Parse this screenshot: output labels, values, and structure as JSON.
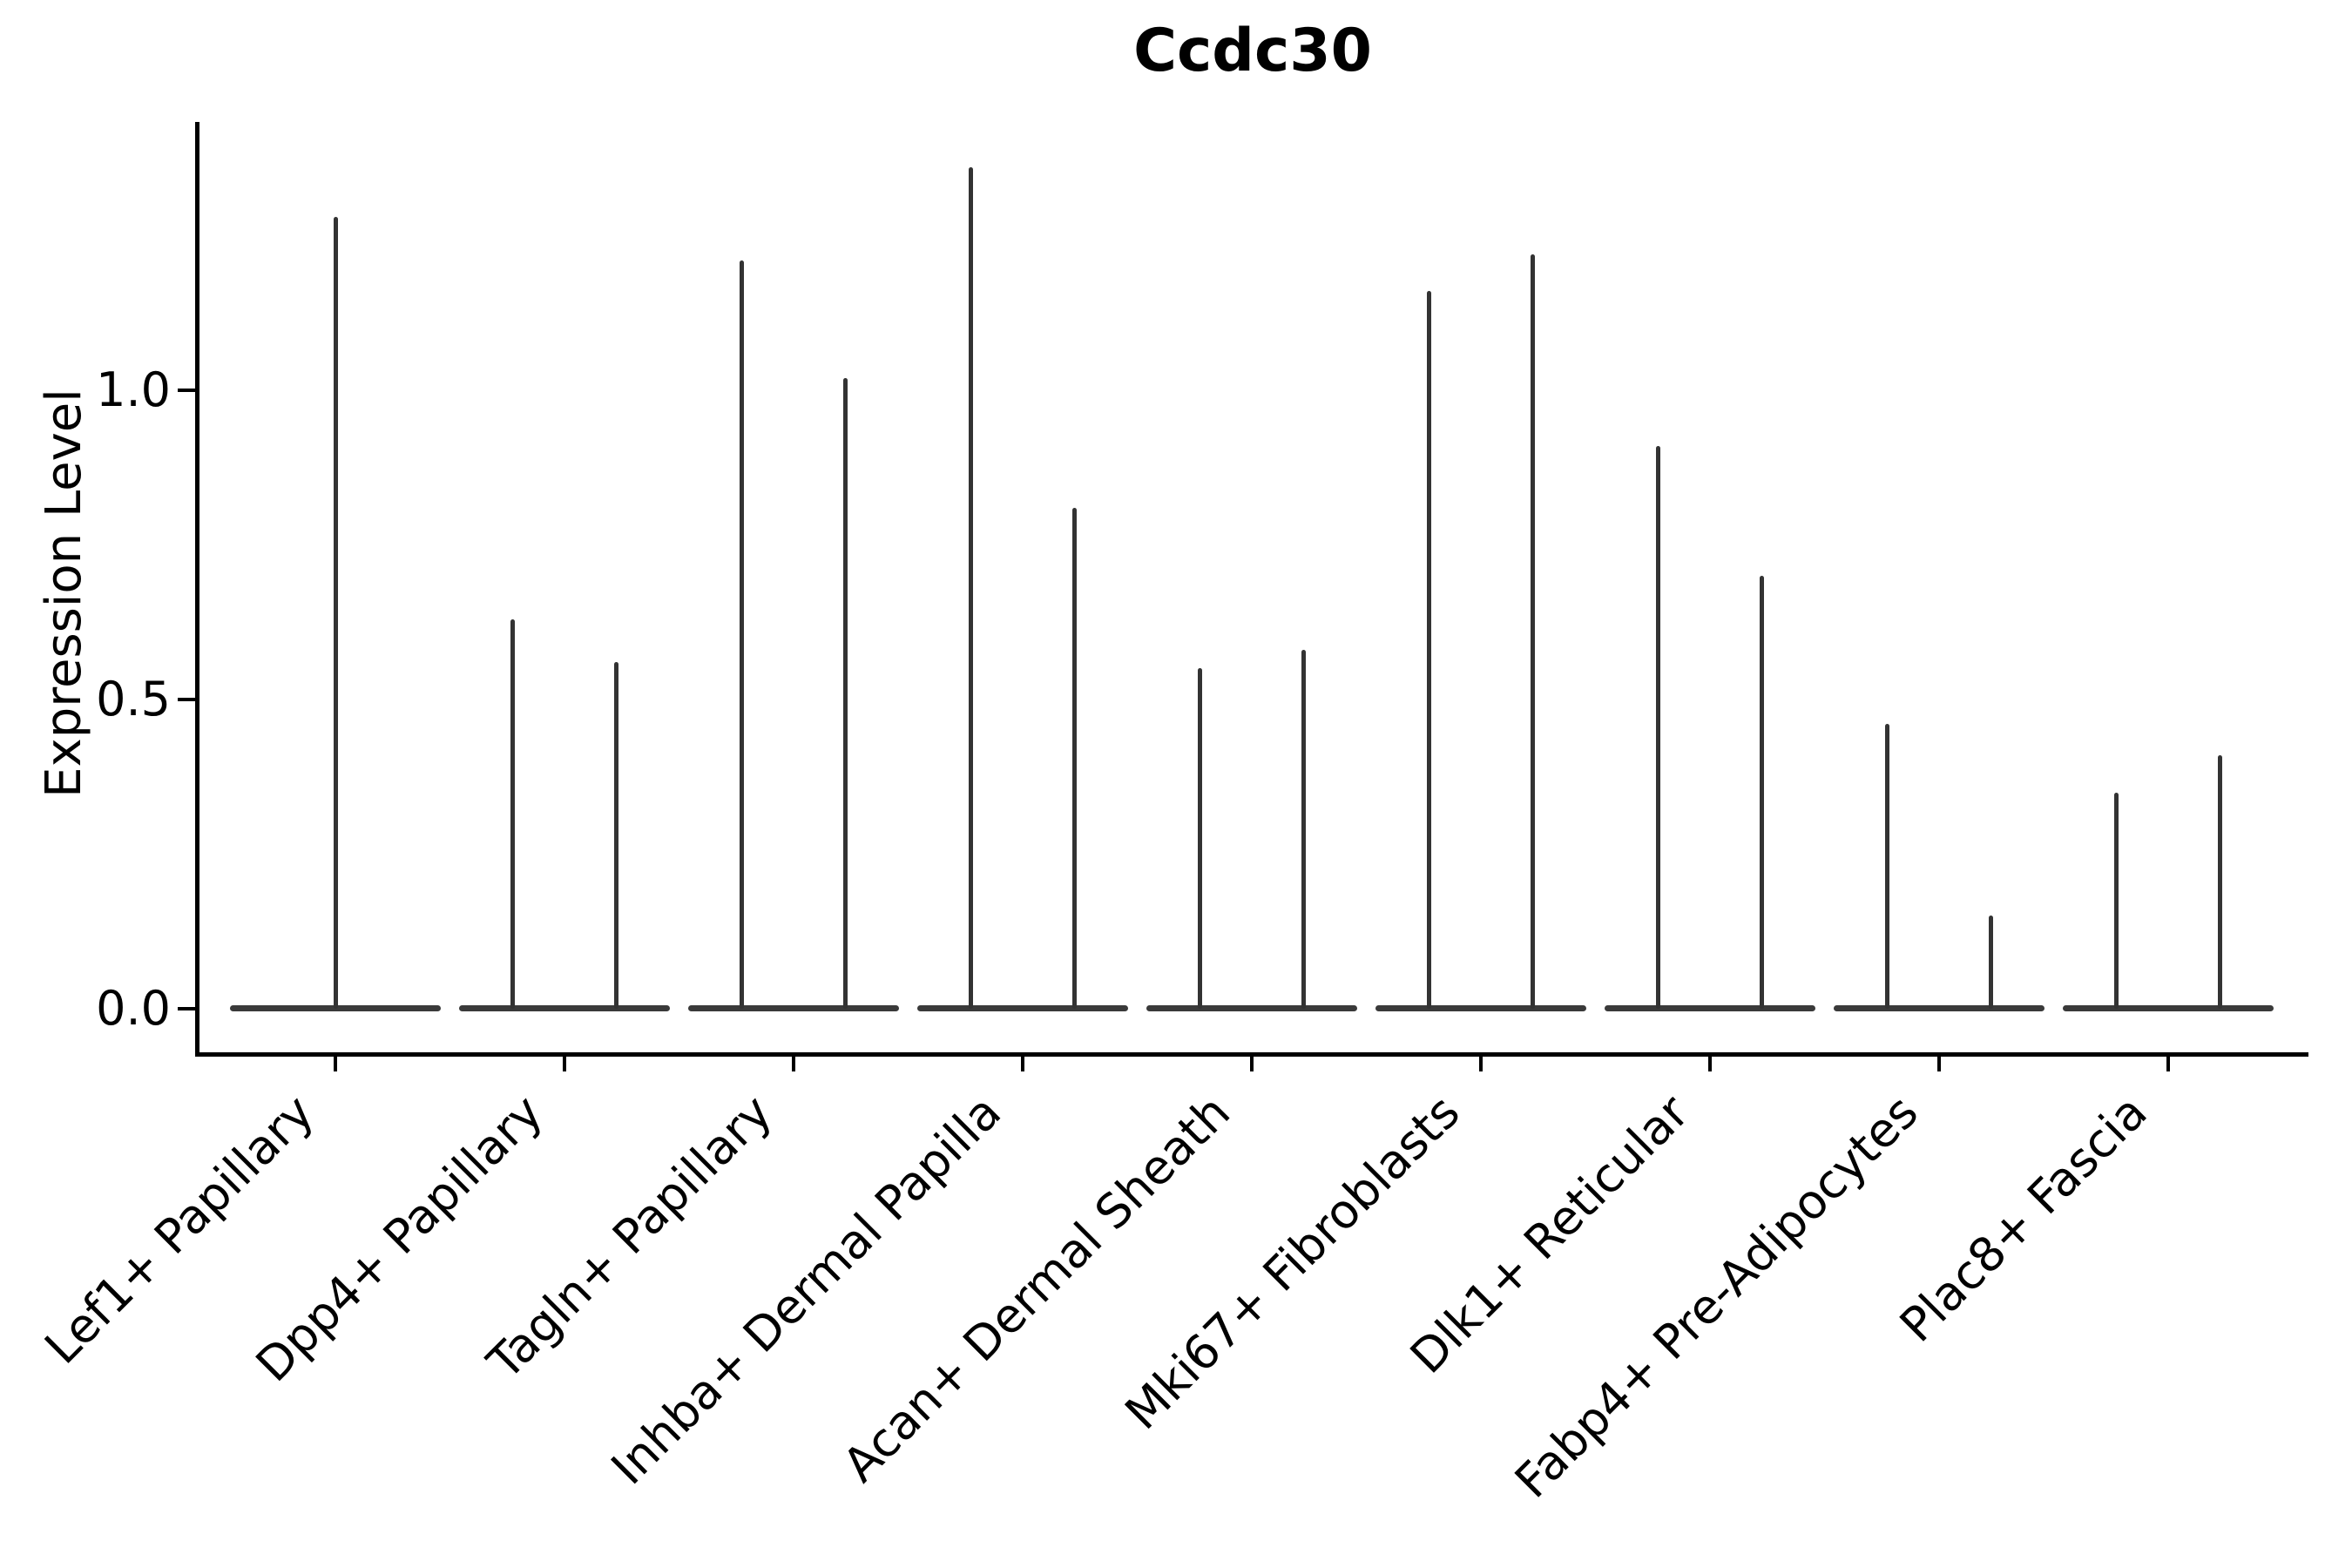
{
  "figure": {
    "title": "Ccdc30",
    "ylabel": "Expression Level",
    "background_color": "#ffffff",
    "axis_color": "#000000"
  },
  "chart_data": {
    "type": "violin",
    "title": "Ccdc30",
    "xlabel": "",
    "ylabel": "Expression Level",
    "grid": false,
    "legend": "none",
    "ylim": [
      -0.07,
      1.43
    ],
    "yticks": [
      0,
      0.5,
      1
    ],
    "ytick_labels": [
      "0.0",
      "0.5",
      "1.0"
    ],
    "violin_color": "#333333",
    "baseline_color": "#3a3a3a",
    "shape_note": "density collapsed at 0 with thin spike rising to the max expression value",
    "categories": [
      "Lef1+ Papillary",
      "Dpp4+ Papillary",
      "Tagln+ Papillary",
      "Inhba+ Dermal Papilla",
      "Acan+ Dermal Sheath",
      "Mki67+ Fibroblasts",
      "Dlk1+ Reticular",
      "Fabp4+ Pre-Adipocytes",
      "Plac8+ Fascia"
    ],
    "violins": [
      {
        "category": "Lef1+ Papillary",
        "max_values": [
          1.28
        ]
      },
      {
        "category": "Dpp4+ Papillary",
        "max_values": [
          0.63,
          0.56
        ]
      },
      {
        "category": "Tagln+ Papillary",
        "max_values": [
          1.21,
          1.02
        ]
      },
      {
        "category": "Inhba+ Dermal Papilla",
        "max_values": [
          1.36,
          0.81
        ]
      },
      {
        "category": "Acan+ Dermal Sheath",
        "max_values": [
          0.55,
          0.58
        ]
      },
      {
        "category": "Mki67+ Fibroblasts",
        "max_values": [
          1.16,
          1.22
        ]
      },
      {
        "category": "Dlk1+ Reticular",
        "max_values": [
          0.91,
          0.7
        ]
      },
      {
        "category": "Fabp4+ Pre-Adipocytes",
        "max_values": [
          0.46,
          0.15
        ]
      },
      {
        "category": "Plac8+ Fascia",
        "max_values": [
          0.35,
          0.41
        ]
      }
    ]
  }
}
